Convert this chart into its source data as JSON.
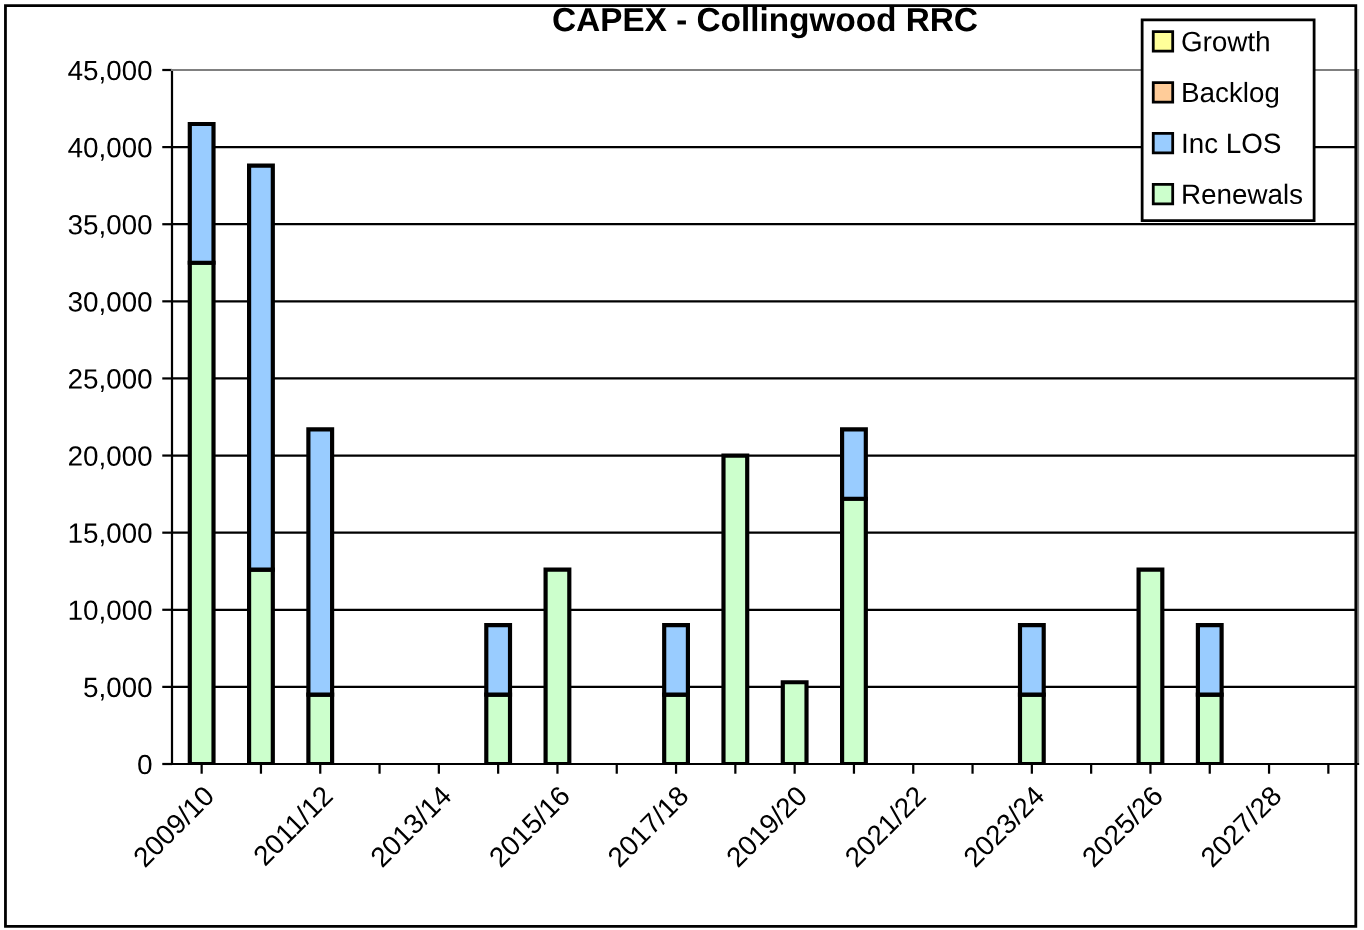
{
  "chart_data": {
    "type": "bar",
    "title": "CAPEX - Collingwood RRC",
    "stacked": true,
    "categories": [
      "2009/10",
      null,
      "2011/12",
      null,
      "2013/14",
      null,
      "2015/16",
      null,
      "2017/18",
      null,
      "2019/20",
      null,
      "2021/22",
      null,
      "2023/24",
      null,
      "2025/26",
      null,
      "2027/28",
      null
    ],
    "series": [
      {
        "name": "Renewals",
        "color": "#ccffcc",
        "values": [
          32500,
          12600,
          4500,
          null,
          null,
          4500,
          12600,
          null,
          4500,
          20000,
          5300,
          17200,
          null,
          null,
          4500,
          null,
          12600,
          4500,
          null,
          null
        ]
      },
      {
        "name": "Inc LOS",
        "color": "#99ccff",
        "values": [
          9000,
          26200,
          17200,
          null,
          null,
          4500,
          null,
          null,
          4500,
          null,
          null,
          4500,
          null,
          null,
          4500,
          null,
          null,
          4500,
          null,
          null
        ]
      },
      {
        "name": "Backlog",
        "color": "#ffcc99",
        "values": [
          null,
          null,
          null,
          null,
          null,
          null,
          null,
          null,
          null,
          null,
          null,
          null,
          null,
          null,
          null,
          null,
          null,
          null,
          null,
          null
        ]
      },
      {
        "name": "Growth",
        "color": "#ffff99",
        "values": [
          null,
          null,
          null,
          null,
          null,
          null,
          null,
          null,
          null,
          null,
          null,
          null,
          null,
          null,
          null,
          null,
          null,
          null,
          null,
          null
        ]
      }
    ],
    "ylim": [
      0,
      45000
    ],
    "yticks": [
      {
        "value": 0,
        "label": "0"
      },
      {
        "value": 5000,
        "label": "5,000"
      },
      {
        "value": 10000,
        "label": "10,000"
      },
      {
        "value": 15000,
        "label": "15,000"
      },
      {
        "value": 20000,
        "label": "20,000"
      },
      {
        "value": 25000,
        "label": "25,000"
      },
      {
        "value": 30000,
        "label": "30,000"
      },
      {
        "value": 35000,
        "label": "35,000"
      },
      {
        "value": 40000,
        "label": "40,000"
      },
      {
        "value": 45000,
        "label": "45,000"
      }
    ],
    "grid": "y",
    "legend": "top right"
  }
}
